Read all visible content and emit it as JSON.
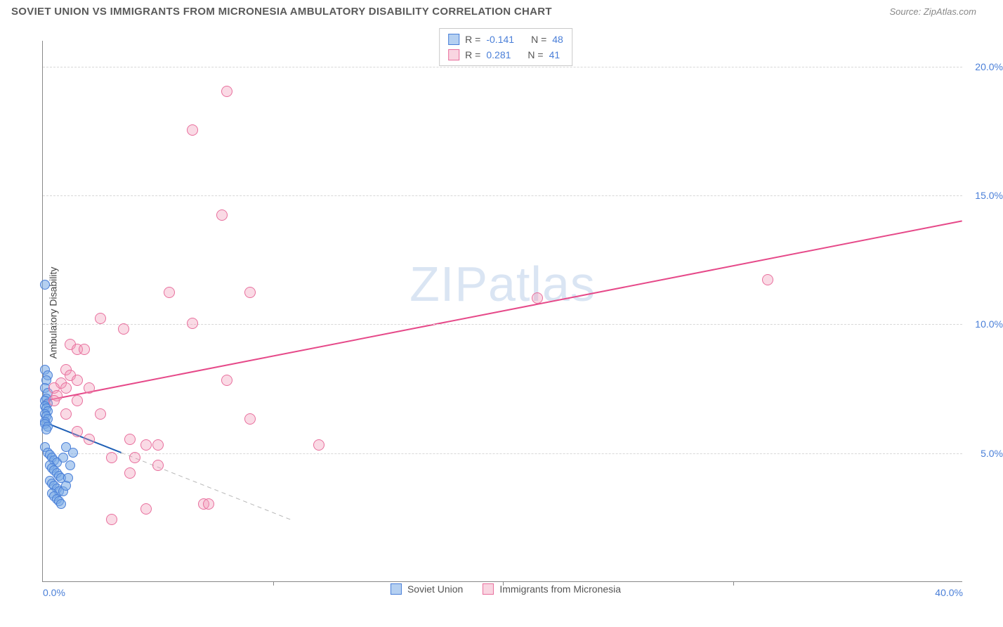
{
  "header": {
    "title": "SOVIET UNION VS IMMIGRANTS FROM MICRONESIA AMBULATORY DISABILITY CORRELATION CHART",
    "source_prefix": "Source: ",
    "source_name": "ZipAtlas.com"
  },
  "watermark": "ZIPatlas",
  "chart": {
    "type": "scatter",
    "ylabel": "Ambulatory Disability",
    "xlim": [
      0,
      40
    ],
    "ylim": [
      0,
      21
    ],
    "xticks": [
      0,
      10,
      20,
      30,
      40
    ],
    "xtick_labels": [
      "0.0%",
      "",
      "",
      "",
      "40.0%"
    ],
    "yticks": [
      5,
      10,
      15,
      20
    ],
    "ytick_labels": [
      "5.0%",
      "10.0%",
      "15.0%",
      "20.0%"
    ],
    "grid_color": "#d8d8d8",
    "background_color": "#ffffff",
    "series": [
      {
        "name": "Soviet Union",
        "color_fill": "rgba(120,170,230,0.55)",
        "color_stroke": "#4a7fd8",
        "marker_size": 14,
        "R": "-0.141",
        "N": "48",
        "trend": {
          "x1": 0,
          "y1": 6.2,
          "x2": 3.4,
          "y2": 5.0,
          "color": "#1e5fb5",
          "width": 2,
          "dash_ext": true
        },
        "points": [
          [
            0.1,
            11.5
          ],
          [
            0.1,
            8.2
          ],
          [
            0.2,
            8.0
          ],
          [
            0.15,
            7.8
          ],
          [
            0.1,
            7.5
          ],
          [
            0.2,
            7.3
          ],
          [
            0.15,
            7.1
          ],
          [
            0.1,
            7.0
          ],
          [
            0.2,
            6.9
          ],
          [
            0.1,
            6.8
          ],
          [
            0.15,
            6.7
          ],
          [
            0.2,
            6.6
          ],
          [
            0.1,
            6.5
          ],
          [
            0.15,
            6.4
          ],
          [
            0.2,
            6.3
          ],
          [
            0.1,
            6.2
          ],
          [
            0.1,
            6.1
          ],
          [
            0.2,
            6.0
          ],
          [
            0.15,
            5.9
          ],
          [
            0.1,
            5.2
          ],
          [
            0.2,
            5.0
          ],
          [
            0.3,
            4.9
          ],
          [
            0.4,
            4.8
          ],
          [
            0.5,
            4.7
          ],
          [
            0.6,
            4.6
          ],
          [
            0.3,
            4.5
          ],
          [
            0.4,
            4.4
          ],
          [
            0.5,
            4.3
          ],
          [
            0.6,
            4.2
          ],
          [
            0.7,
            4.1
          ],
          [
            0.8,
            4.0
          ],
          [
            0.3,
            3.9
          ],
          [
            0.4,
            3.8
          ],
          [
            0.5,
            3.7
          ],
          [
            0.6,
            3.6
          ],
          [
            0.7,
            3.5
          ],
          [
            0.4,
            3.4
          ],
          [
            0.5,
            3.3
          ],
          [
            0.6,
            3.2
          ],
          [
            0.7,
            3.1
          ],
          [
            0.8,
            3.0
          ],
          [
            0.9,
            3.5
          ],
          [
            1.1,
            4.0
          ],
          [
            1.0,
            3.7
          ],
          [
            1.2,
            4.5
          ],
          [
            1.3,
            5.0
          ],
          [
            0.9,
            4.8
          ],
          [
            1.0,
            5.2
          ]
        ]
      },
      {
        "name": "Immigrants from Micronesia",
        "color_fill": "rgba(240,150,180,0.35)",
        "color_stroke": "#e86f9d",
        "marker_size": 16,
        "R": "0.281",
        "N": "41",
        "trend": {
          "x1": 0,
          "y1": 7.0,
          "x2": 40,
          "y2": 14.0,
          "color": "#e64989",
          "width": 2,
          "dash_ext": false
        },
        "points": [
          [
            8.0,
            19.0
          ],
          [
            6.5,
            17.5
          ],
          [
            7.8,
            14.2
          ],
          [
            5.5,
            11.2
          ],
          [
            9.0,
            11.2
          ],
          [
            21.5,
            11.0
          ],
          [
            31.5,
            11.7
          ],
          [
            2.5,
            10.2
          ],
          [
            1.2,
            9.2
          ],
          [
            1.5,
            9.0
          ],
          [
            1.8,
            9.0
          ],
          [
            3.5,
            9.8
          ],
          [
            6.5,
            10.0
          ],
          [
            1.0,
            8.2
          ],
          [
            1.2,
            8.0
          ],
          [
            1.5,
            7.8
          ],
          [
            0.8,
            7.7
          ],
          [
            1.0,
            7.5
          ],
          [
            0.5,
            7.5
          ],
          [
            0.6,
            7.2
          ],
          [
            2.0,
            7.5
          ],
          [
            8.0,
            7.8
          ],
          [
            0.5,
            7.0
          ],
          [
            1.5,
            7.0
          ],
          [
            2.5,
            6.5
          ],
          [
            9.0,
            6.3
          ],
          [
            1.0,
            6.5
          ],
          [
            3.8,
            5.5
          ],
          [
            4.5,
            5.3
          ],
          [
            5.0,
            5.3
          ],
          [
            12.0,
            5.3
          ],
          [
            3.0,
            4.8
          ],
          [
            4.0,
            4.8
          ],
          [
            5.0,
            4.5
          ],
          [
            3.8,
            4.2
          ],
          [
            7.0,
            3.0
          ],
          [
            7.2,
            3.0
          ],
          [
            3.0,
            2.4
          ],
          [
            4.5,
            2.8
          ],
          [
            1.5,
            5.8
          ],
          [
            2.0,
            5.5
          ]
        ]
      }
    ],
    "legend_top": {
      "labels": {
        "R": "R =",
        "N": "N ="
      }
    },
    "legend_bottom": {
      "items": [
        "Soviet Union",
        "Immigrants from Micronesia"
      ]
    }
  }
}
